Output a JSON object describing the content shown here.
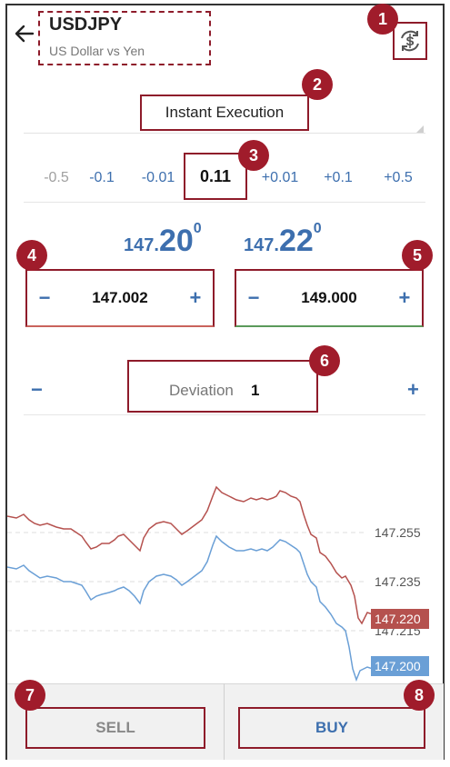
{
  "header": {
    "symbol": "USDJPY",
    "description": "US Dollar vs Yen",
    "back_icon": "arrow-left-icon",
    "sync_icon": "currency-sync-icon"
  },
  "order": {
    "execution_type": "Instant Execution",
    "steps": [
      "-0.5",
      "-0.1",
      "-0.01",
      "0.11",
      "+0.01",
      "+0.1",
      "+0.5"
    ],
    "selected_step_index": 3,
    "volume": "0.11"
  },
  "prices": {
    "bid_prefix": "147.",
    "bid_big": "20",
    "bid_sup": "0",
    "ask_prefix": "147.",
    "ask_big": "22",
    "ask_sup": "0"
  },
  "fields": {
    "stop_loss": "147.002",
    "take_profit": "149.000",
    "minus": "−",
    "plus": "+"
  },
  "deviation": {
    "label": "Deviation",
    "value": "1",
    "minus": "−",
    "plus": "+"
  },
  "chart_data": {
    "type": "line",
    "y_ticks": [
      "147.255",
      "147.235",
      "147.215"
    ],
    "ask_tag": "147.220",
    "bid_tag": "147.200",
    "series": [
      {
        "color": "#b5514e"
      },
      {
        "color": "#6a9fd6"
      }
    ]
  },
  "actions": {
    "sell": "SELL",
    "buy": "BUY"
  },
  "callouts": [
    "1",
    "2",
    "3",
    "4",
    "5",
    "6",
    "7",
    "8"
  ],
  "colors": {
    "accent": "#3d6fae",
    "annotation": "#a01c2b",
    "ask_line": "#b5514e",
    "bid_line": "#6a9fd6"
  }
}
